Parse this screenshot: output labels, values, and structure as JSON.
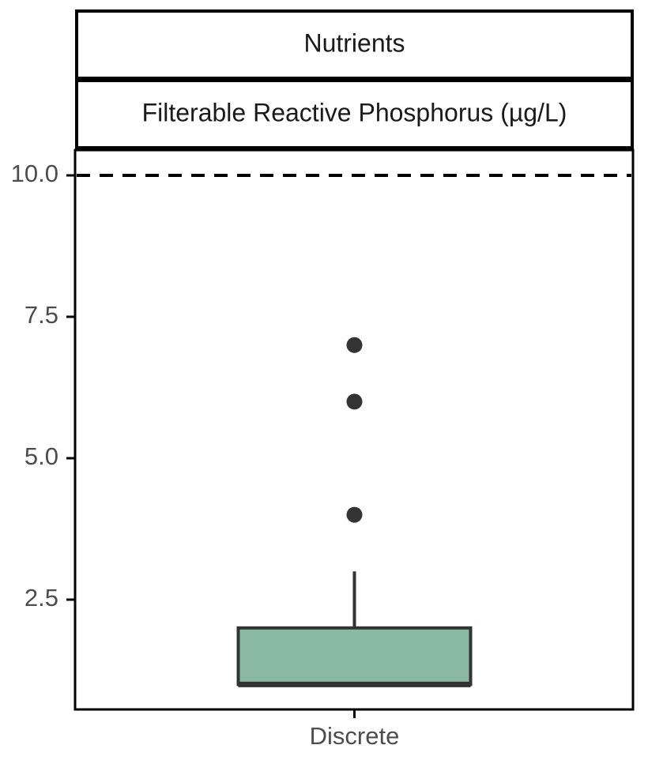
{
  "chart_data": {
    "type": "box",
    "facet_strips": [
      "Nutrients",
      "Filterable Reactive Phosphorus (µg/L)"
    ],
    "categories": [
      "Discrete"
    ],
    "y_ticks": [
      "2.5",
      "5.0",
      "7.5",
      "10.0"
    ],
    "y_tick_values": [
      2.5,
      5.0,
      7.5,
      10.0
    ],
    "ylim": [
      0.5,
      10.5
    ],
    "reference_line": {
      "y": 10.0,
      "style": "dashed"
    },
    "boxes": [
      {
        "category": "Discrete",
        "min": 1.0,
        "q1": 1.0,
        "median": 1.0,
        "q3": 2.0,
        "max": 3.0,
        "outliers": [
          4.0,
          6.0,
          7.0
        ]
      }
    ],
    "xlabel": "",
    "ylabel": "",
    "grid": false,
    "colors": {
      "box_fill": "#8ab9a1",
      "box_stroke": "#333333",
      "outlier": "#333333",
      "axis": "#000000",
      "tick_text": "#4d4d4d",
      "strip_text": "#1a1a1a"
    }
  }
}
